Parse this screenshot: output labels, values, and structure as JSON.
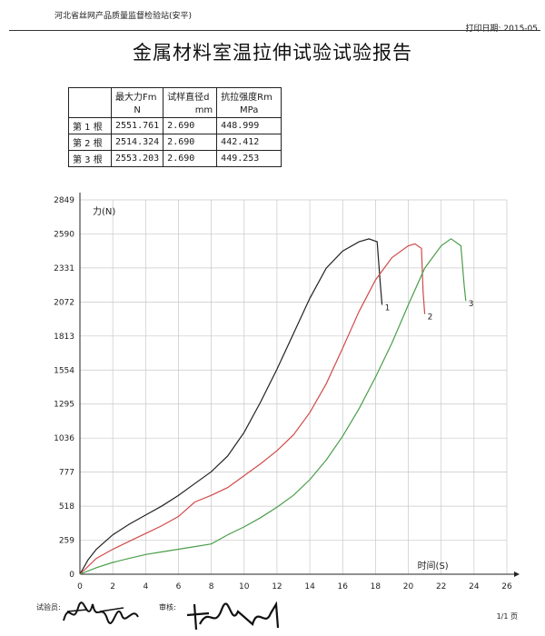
{
  "header": {
    "org": "河北省丝网产品质量监督检验站(安平)",
    "print_date": "打印日期: 2015-05"
  },
  "title": "金属材料室温拉伸试验试验报告",
  "results_table": {
    "headers": [
      "最大力Fm",
      "试样直径d",
      "抗拉强度Rm"
    ],
    "units": [
      "N",
      "mm",
      "MPa"
    ],
    "rows": [
      {
        "label": "第 1 根",
        "fm": "2551.761",
        "d": "2.690",
        "rm": "448.999"
      },
      {
        "label": "第 2 根",
        "fm": "2514.324",
        "d": "2.690",
        "rm": "442.412"
      },
      {
        "label": "第 3 根",
        "fm": "2553.203",
        "d": "2.690",
        "rm": "449.253"
      }
    ]
  },
  "chart_data": {
    "type": "line",
    "title": "",
    "ylabel": "力(N)",
    "xlabel": "时间(S)",
    "ylim": [
      0,
      2849
    ],
    "xlim": [
      0,
      26
    ],
    "yticks": [
      "0",
      "259",
      "518",
      "777",
      "1036",
      "1295",
      "1554",
      "1813",
      "2072",
      "2331",
      "2590",
      "2849"
    ],
    "xticks": [
      "0",
      "2",
      "4",
      "6",
      "8",
      "10",
      "12",
      "14",
      "16",
      "18",
      "20",
      "22",
      "24",
      "26"
    ],
    "grid": true,
    "colors": {
      "1": "#222222",
      "2": "#d24a4a",
      "3": "#4a9e4a"
    },
    "series": [
      {
        "name": "1",
        "points": [
          [
            0,
            0
          ],
          [
            0.5,
            110
          ],
          [
            1,
            190
          ],
          [
            2,
            300
          ],
          [
            3,
            380
          ],
          [
            4,
            450
          ],
          [
            5,
            520
          ],
          [
            6,
            600
          ],
          [
            7,
            690
          ],
          [
            8,
            780
          ],
          [
            9,
            900
          ],
          [
            10,
            1080
          ],
          [
            11,
            1310
          ],
          [
            12,
            1560
          ],
          [
            13,
            1830
          ],
          [
            14,
            2100
          ],
          [
            15,
            2330
          ],
          [
            16,
            2460
          ],
          [
            17,
            2530
          ],
          [
            17.6,
            2552
          ],
          [
            18.1,
            2530
          ],
          [
            18.3,
            2200
          ],
          [
            18.4,
            2050
          ]
        ]
      },
      {
        "name": "2",
        "points": [
          [
            0,
            0
          ],
          [
            0.5,
            60
          ],
          [
            1,
            120
          ],
          [
            2,
            190
          ],
          [
            3,
            250
          ],
          [
            4,
            310
          ],
          [
            5,
            370
          ],
          [
            6,
            440
          ],
          [
            7,
            550
          ],
          [
            8,
            600
          ],
          [
            9,
            660
          ],
          [
            10,
            750
          ],
          [
            11,
            840
          ],
          [
            12,
            940
          ],
          [
            13,
            1060
          ],
          [
            14,
            1230
          ],
          [
            15,
            1450
          ],
          [
            16,
            1720
          ],
          [
            17,
            2000
          ],
          [
            18,
            2240
          ],
          [
            19,
            2410
          ],
          [
            20,
            2500
          ],
          [
            20.4,
            2514
          ],
          [
            20.8,
            2480
          ],
          [
            20.9,
            2150
          ],
          [
            21,
            1980
          ]
        ]
      },
      {
        "name": "3",
        "points": [
          [
            0,
            0
          ],
          [
            1,
            50
          ],
          [
            2,
            90
          ],
          [
            3,
            120
          ],
          [
            4,
            150
          ],
          [
            5,
            170
          ],
          [
            6,
            190
          ],
          [
            7,
            210
          ],
          [
            8,
            230
          ],
          [
            9,
            300
          ],
          [
            10,
            360
          ],
          [
            11,
            430
          ],
          [
            12,
            510
          ],
          [
            13,
            600
          ],
          [
            14,
            720
          ],
          [
            15,
            870
          ],
          [
            16,
            1050
          ],
          [
            17,
            1260
          ],
          [
            18,
            1500
          ],
          [
            19,
            1760
          ],
          [
            20,
            2050
          ],
          [
            21,
            2330
          ],
          [
            22,
            2500
          ],
          [
            22.6,
            2553
          ],
          [
            23.2,
            2500
          ],
          [
            23.4,
            2200
          ],
          [
            23.5,
            2080
          ]
        ]
      }
    ]
  },
  "footer": {
    "tester": "试验员:",
    "reviewer": "审核:",
    "page": "1/1 页"
  }
}
